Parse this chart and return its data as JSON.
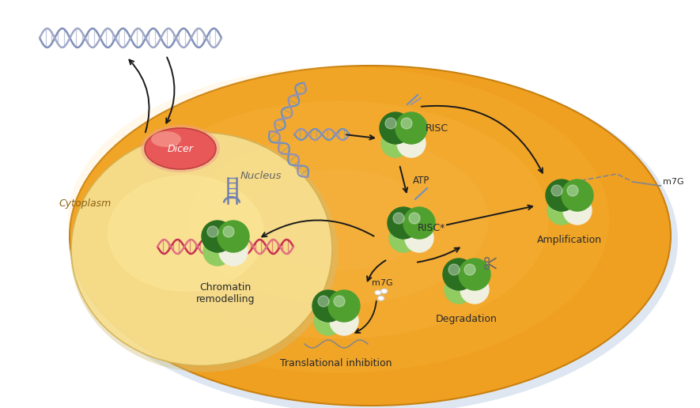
{
  "background_color": "#ffffff",
  "cell_color": "#F0A020",
  "cell_edge_color": "#C88010",
  "nucleus_color": "#F8E090",
  "nucleus_border": "#D4B050",
  "dicer_color_inner": "#E86060",
  "dicer_color_outer": "#F09090",
  "green_dark": "#2A7020",
  "green_mid": "#50A030",
  "green_light": "#90CC60",
  "green_pale": "#C8E898",
  "white_sphere": "#F0F0E0",
  "dna_blue1": "#7090C0",
  "dna_blue2": "#9090B8",
  "dna_red1": "#C83050",
  "dna_red2": "#E07080",
  "arrow_color": "#1A1A1A",
  "text_color": "#2A2A2A",
  "labels": {
    "cytoplasm": "Cytoplasm",
    "nucleus": "Nucleus",
    "dicer": "Dicer",
    "risc": "RISC",
    "risc_star": "RISC*",
    "atp": "ATP",
    "m7g_right": "m7G",
    "m7g_left": "m7G",
    "amplification": "Amplification",
    "degradation": "Degradation",
    "translational": "Translational inhibition",
    "chromatin": "Chromatin\nremodelling"
  },
  "fig_width": 8.85,
  "fig_height": 5.16,
  "dpi": 100
}
